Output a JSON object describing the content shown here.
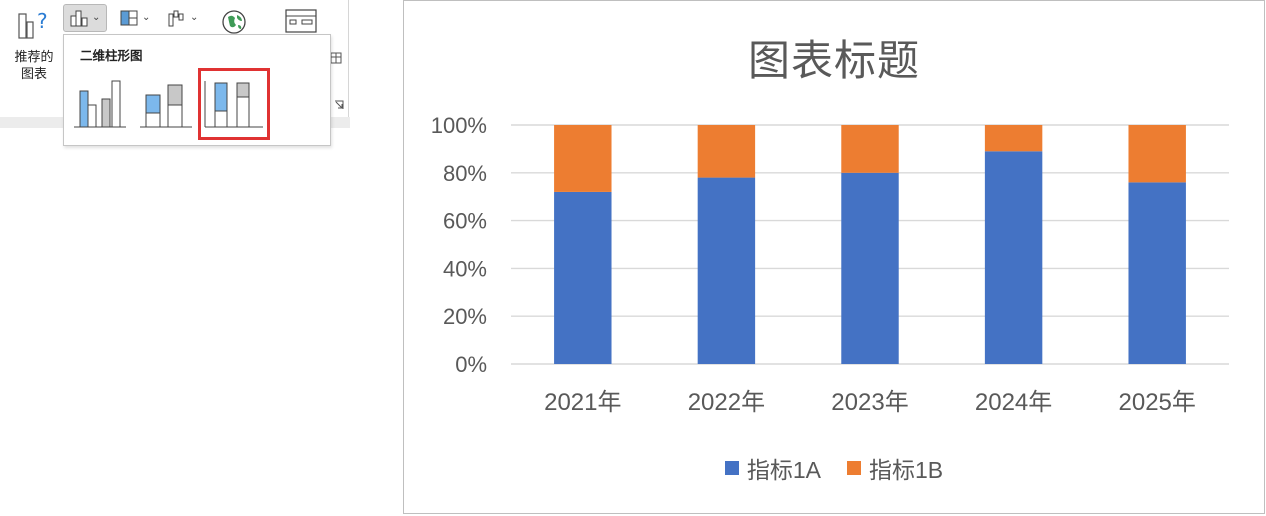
{
  "ribbon": {
    "recommended_charts_label": "推荐的\n图表",
    "recommended_charts_icon": "chart-help-icon",
    "column_chart_icon": "column-chart-icon",
    "hierarchy_chart_icon": "hierarchy-chart-icon",
    "waterfall_chart_icon": "waterfall-chart-icon",
    "maps_icon": "globe-icon",
    "pivot_chart_icon": "pivot-chart-icon"
  },
  "dropdown": {
    "title": "二维柱形图",
    "items": [
      {
        "name": "clustered-column",
        "icon": "clustered-column-icon",
        "selected": false
      },
      {
        "name": "stacked-column",
        "icon": "stacked-column-icon",
        "selected": false
      },
      {
        "name": "100-percent-stacked-column",
        "icon": "percent-stacked-column-icon",
        "selected": true
      }
    ]
  },
  "chart_data": {
    "type": "bar",
    "subtype": "100% stacked column",
    "title": "图表标题",
    "categories": [
      "2021年",
      "2022年",
      "2023年",
      "2024年",
      "2025年"
    ],
    "series": [
      {
        "name": "指标1A",
        "color": "#4472C4",
        "values": [
          72,
          78,
          80,
          89,
          76
        ]
      },
      {
        "name": "指标1B",
        "color": "#ED7D31",
        "values": [
          28,
          22,
          20,
          11,
          24
        ]
      }
    ],
    "ylim": [
      0,
      100
    ],
    "yticks": [
      "0%",
      "20%",
      "40%",
      "60%",
      "80%",
      "100%"
    ],
    "xlabel": "",
    "ylabel": "",
    "grid": true,
    "legend": "bottom"
  },
  "colors": {
    "accent_selection": "#E03232",
    "axis_text": "#595959",
    "gridline": "#D9D9D9"
  }
}
